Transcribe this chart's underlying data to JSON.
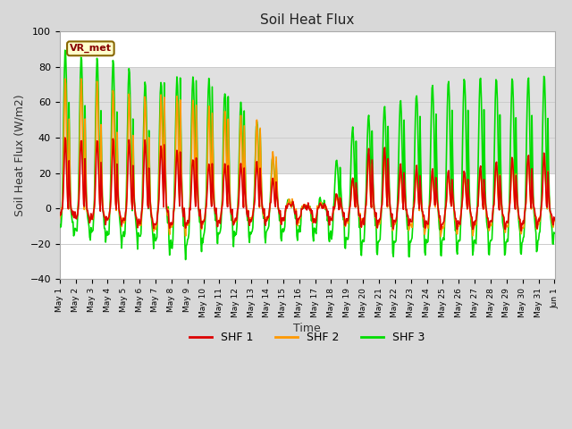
{
  "title": "Soil Heat Flux",
  "xlabel": "Time",
  "ylabel": "Soil Heat Flux (W/m2)",
  "ylim": [
    -40,
    100
  ],
  "yticks": [
    -40,
    -20,
    0,
    20,
    40,
    60,
    80,
    100
  ],
  "bg_color": "#d8d8d8",
  "plot_bg_color": "#ffffff",
  "shaded_band": [
    20,
    80
  ],
  "shaded_band_color": "#e0e0e0",
  "line_colors": [
    "#dd0000",
    "#ff9900",
    "#00dd00"
  ],
  "legend_labels": [
    "SHF 1",
    "SHF 2",
    "SHF 3"
  ],
  "annotation_text": "VR_met",
  "annotation_color": "#880000",
  "annotation_bg": "#ffffcc",
  "annotation_border": "#886600",
  "num_days": 31,
  "hours_per_day": 24
}
